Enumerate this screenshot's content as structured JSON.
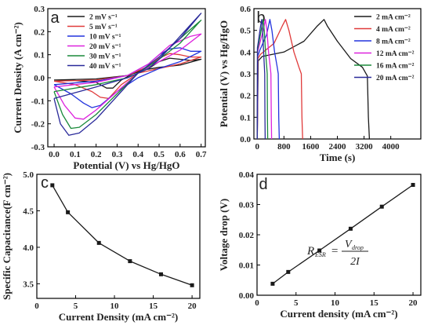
{
  "chart_data": [
    {
      "id": "a",
      "type": "line",
      "panel_label": "a",
      "xlabel": "Potential (V) vs Hg/HgO",
      "ylabel": "Current Density (A cm⁻²)",
      "xlim": [
        -0.03,
        0.72
      ],
      "ylim": [
        -0.3,
        0.3
      ],
      "xticks": [
        0.0,
        0.1,
        0.2,
        0.3,
        0.4,
        0.5,
        0.6,
        0.7
      ],
      "xtick_labels": [
        "0.0",
        "0.1",
        "0.2",
        "0.3",
        "0.4",
        "0.5",
        "0.6",
        "0.7"
      ],
      "yticks": [
        -0.3,
        -0.2,
        -0.1,
        0.0,
        0.1,
        0.2,
        0.3
      ],
      "ytick_labels": [
        "-0.3",
        "-0.2",
        "-0.1",
        "0.0",
        "0.1",
        "0.2",
        "0.3"
      ],
      "legend_position": "top-left",
      "series": [
        {
          "name": "2 mV s⁻¹",
          "color": "#1a1a1a",
          "anodic_x": [
            0.0,
            0.2,
            0.35,
            0.45,
            0.5,
            0.55,
            0.6,
            0.65,
            0.7
          ],
          "anodic_y": [
            -0.01,
            -0.005,
            0.01,
            0.04,
            0.07,
            0.085,
            0.08,
            0.075,
            0.08
          ],
          "cathodic_x": [
            0.7,
            0.6,
            0.5,
            0.4,
            0.32,
            0.28,
            0.25,
            0.2,
            0.1,
            0.0
          ],
          "cathodic_y": [
            0.08,
            0.055,
            0.045,
            0.03,
            -0.01,
            -0.045,
            -0.045,
            -0.02,
            -0.012,
            -0.01
          ]
        },
        {
          "name": "5 mV s⁻¹",
          "color": "#e03a3a",
          "anodic_x": [
            0.0,
            0.2,
            0.35,
            0.45,
            0.5,
            0.55,
            0.6,
            0.65,
            0.7
          ],
          "anodic_y": [
            -0.015,
            -0.01,
            0.01,
            0.05,
            0.085,
            0.105,
            0.1,
            0.09,
            0.09
          ],
          "cathodic_x": [
            0.7,
            0.6,
            0.5,
            0.4,
            0.32,
            0.26,
            0.22,
            0.18,
            0.1,
            0.0
          ],
          "cathodic_y": [
            0.09,
            0.06,
            0.04,
            0.02,
            -0.03,
            -0.09,
            -0.085,
            -0.06,
            -0.03,
            -0.015
          ]
        },
        {
          "name": "10 mV s⁻¹",
          "color": "#2233dd",
          "anodic_x": [
            0.0,
            0.2,
            0.35,
            0.45,
            0.5,
            0.55,
            0.6,
            0.65,
            0.7
          ],
          "anodic_y": [
            -0.03,
            -0.015,
            0.01,
            0.06,
            0.1,
            0.125,
            0.13,
            0.115,
            0.115
          ],
          "cathodic_x": [
            0.7,
            0.6,
            0.5,
            0.4,
            0.3,
            0.22,
            0.18,
            0.14,
            0.08,
            0.0
          ],
          "cathodic_y": [
            0.115,
            0.07,
            0.04,
            0.0,
            -0.06,
            -0.12,
            -0.13,
            -0.11,
            -0.07,
            -0.03
          ]
        },
        {
          "name": "20 mV s⁻¹",
          "color": "#dd22dd",
          "anodic_x": [
            0.0,
            0.2,
            0.35,
            0.45,
            0.5,
            0.55,
            0.6,
            0.65,
            0.7
          ],
          "anodic_y": [
            -0.04,
            -0.02,
            0.01,
            0.06,
            0.1,
            0.14,
            0.16,
            0.18,
            0.19
          ],
          "cathodic_x": [
            0.7,
            0.6,
            0.5,
            0.4,
            0.3,
            0.2,
            0.14,
            0.1,
            0.05,
            0.0
          ],
          "cathodic_y": [
            0.19,
            0.12,
            0.07,
            0.02,
            -0.06,
            -0.14,
            -0.18,
            -0.175,
            -0.12,
            -0.04
          ]
        },
        {
          "name": "30 mV s⁻¹",
          "color": "#1a8a3a",
          "anodic_x": [
            0.0,
            0.2,
            0.35,
            0.45,
            0.5,
            0.55,
            0.6,
            0.65,
            0.7
          ],
          "anodic_y": [
            -0.06,
            -0.03,
            0.0,
            0.04,
            0.08,
            0.13,
            0.17,
            0.21,
            0.25
          ],
          "cathodic_x": [
            0.7,
            0.6,
            0.5,
            0.4,
            0.3,
            0.2,
            0.12,
            0.08,
            0.04,
            0.0
          ],
          "cathodic_y": [
            0.25,
            0.15,
            0.08,
            0.02,
            -0.07,
            -0.16,
            -0.215,
            -0.22,
            -0.16,
            -0.06
          ]
        },
        {
          "name": "40 mV s⁻¹",
          "color": "#2a2a9a",
          "anodic_x": [
            0.0,
            0.2,
            0.35,
            0.45,
            0.5,
            0.55,
            0.6,
            0.65,
            0.7
          ],
          "anodic_y": [
            -0.09,
            -0.04,
            0.0,
            0.04,
            0.08,
            0.13,
            0.18,
            0.23,
            0.28
          ],
          "cathodic_x": [
            0.7,
            0.6,
            0.5,
            0.4,
            0.3,
            0.2,
            0.12,
            0.07,
            0.03,
            0.0
          ],
          "cathodic_y": [
            0.28,
            0.17,
            0.09,
            0.02,
            -0.08,
            -0.18,
            -0.24,
            -0.25,
            -0.2,
            -0.09
          ]
        }
      ]
    },
    {
      "id": "b",
      "type": "line",
      "panel_label": "b",
      "xlabel": "Time (s)",
      "ylabel": "Potential (V) vs Hg/HgO",
      "xlim": [
        -100,
        4900
      ],
      "ylim": [
        0.0,
        0.6
      ],
      "xticks": [
        0,
        800,
        1600,
        2400,
        3200,
        4000
      ],
      "xtick_labels": [
        "0",
        "800",
        "1600",
        "2400",
        "3200",
        "4000"
      ],
      "yticks": [
        0.0,
        0.1,
        0.2,
        0.3,
        0.4,
        0.5,
        0.6
      ],
      "ytick_labels": [
        "0.0",
        "0.1",
        "0.2",
        "0.3",
        "0.4",
        "0.5",
        "0.6"
      ],
      "legend_position": "top-right",
      "series": [
        {
          "name": "2 mA cm⁻²",
          "color": "#1a1a1a",
          "x": [
            0,
            30,
            150,
            800,
            1400,
            1800,
            2000,
            2100,
            2400,
            2800,
            3150,
            3300,
            3330,
            3360
          ],
          "y": [
            0.0,
            0.36,
            0.38,
            0.4,
            0.45,
            0.52,
            0.55,
            0.52,
            0.45,
            0.37,
            0.33,
            0.29,
            0.1,
            0.0
          ]
        },
        {
          "name": "4 mA cm⁻²",
          "color": "#e03a3a",
          "x": [
            0,
            20,
            100,
            500,
            750,
            850,
            950,
            1100,
            1250,
            1320,
            1340,
            1360
          ],
          "y": [
            0.0,
            0.37,
            0.39,
            0.44,
            0.52,
            0.55,
            0.5,
            0.4,
            0.33,
            0.3,
            0.1,
            0.0
          ]
        },
        {
          "name": "8 mA cm⁻²",
          "color": "#2233dd",
          "x": [
            0,
            15,
            80,
            280,
            380,
            440,
            520,
            600,
            630,
            645,
            660
          ],
          "y": [
            0.0,
            0.38,
            0.41,
            0.48,
            0.55,
            0.5,
            0.4,
            0.33,
            0.3,
            0.1,
            0.0
          ]
        },
        {
          "name": "12 mA cm⁻²",
          "color": "#dd22dd",
          "x": [
            0,
            10,
            60,
            180,
            245,
            290,
            340,
            390,
            410,
            420,
            430
          ],
          "y": [
            0.0,
            0.4,
            0.43,
            0.5,
            0.55,
            0.5,
            0.4,
            0.33,
            0.3,
            0.1,
            0.0
          ]
        },
        {
          "name": "16 mA cm⁻²",
          "color": "#1a8a3a",
          "x": [
            0,
            8,
            45,
            130,
            175,
            210,
            250,
            285,
            298,
            306,
            312
          ],
          "y": [
            0.0,
            0.41,
            0.44,
            0.51,
            0.55,
            0.5,
            0.4,
            0.33,
            0.3,
            0.1,
            0.0
          ]
        },
        {
          "name": "20 mA cm⁻²",
          "color": "#2a2a9a",
          "x": [
            0,
            6,
            35,
            100,
            135,
            160,
            190,
            215,
            225,
            232,
            238
          ],
          "y": [
            0.0,
            0.42,
            0.45,
            0.52,
            0.55,
            0.5,
            0.4,
            0.33,
            0.3,
            0.1,
            0.0
          ]
        }
      ]
    },
    {
      "id": "c",
      "type": "line",
      "panel_label": "c",
      "xlabel": "Current Density (mA cm⁻²)",
      "ylabel": "Specific Capacitance(F cm⁻²)",
      "xlim": [
        0,
        21
      ],
      "ylim": [
        3.3,
        5.0
      ],
      "xticks": [
        0,
        5,
        10,
        15,
        20
      ],
      "xtick_labels": [
        "0",
        "5",
        "10",
        "15",
        "20"
      ],
      "yticks": [
        3.5,
        4.0,
        4.5,
        5.0
      ],
      "ytick_labels": [
        "3.5",
        "4.0",
        "4.5",
        "5.0"
      ],
      "series": [
        {
          "name": "",
          "color": "#1a1a1a",
          "marker": "square",
          "x": [
            2,
            4,
            8,
            12,
            16,
            20
          ],
          "y": [
            4.85,
            4.48,
            4.06,
            3.81,
            3.63,
            3.48
          ]
        }
      ]
    },
    {
      "id": "d",
      "type": "line",
      "panel_label": "d",
      "xlabel": "Current density (mA cm⁻²)",
      "ylabel": "Voltage drop (V)",
      "xlim": [
        0,
        21
      ],
      "ylim": [
        0.0,
        0.04
      ],
      "xticks": [
        0,
        5,
        10,
        15,
        20
      ],
      "xtick_labels": [
        "0",
        "5",
        "10",
        "15",
        "20"
      ],
      "yticks": [
        0.0,
        0.01,
        0.02,
        0.03,
        0.04
      ],
      "ytick_labels": [
        "0.00",
        "0.01",
        "0.02",
        "0.03",
        "0.04"
      ],
      "annotation": {
        "lhs": "R",
        "lhs_sub": "ESR",
        "equals": "=",
        "numerator": "V",
        "numerator_sub": "drop",
        "denominator": "2I"
      },
      "series": [
        {
          "name": "",
          "color": "#1a1a1a",
          "marker": "square",
          "x": [
            2,
            4,
            8,
            12,
            16,
            20
          ],
          "y": [
            0.0038,
            0.0077,
            0.0148,
            0.022,
            0.0293,
            0.0365
          ]
        }
      ]
    }
  ]
}
